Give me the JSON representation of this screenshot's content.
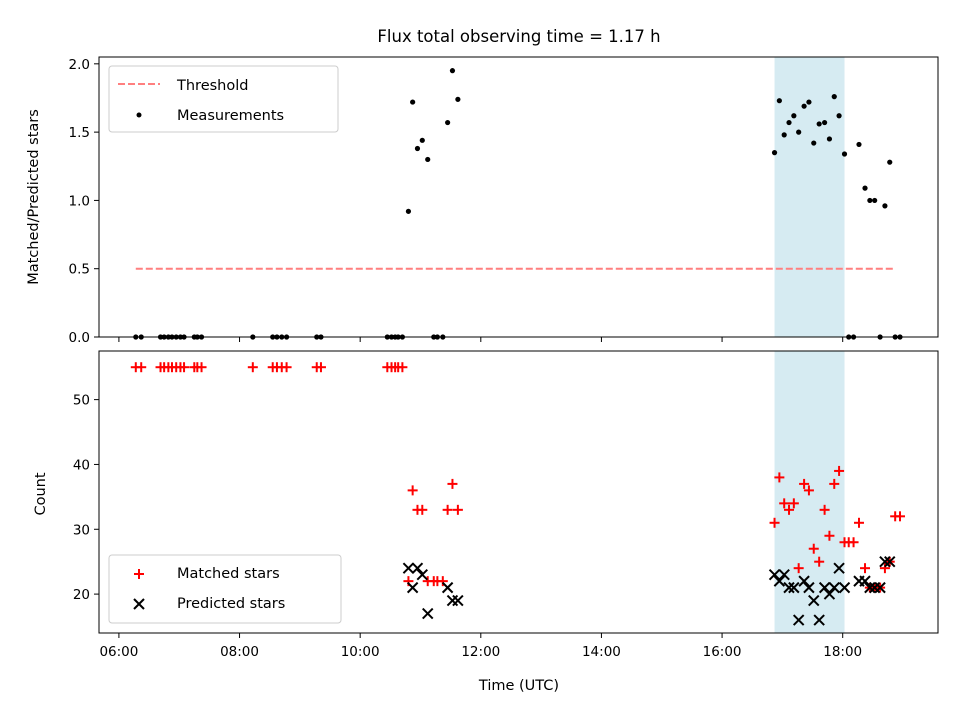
{
  "title": "Flux total observing time = 1.17 h",
  "colors": {
    "threshold": "#ff7f7f",
    "measurement": "#000000",
    "matched": "#ff0000",
    "predicted": "#000000",
    "span_fill": "#add8e6"
  },
  "chart_data": [
    {
      "type": "scatter",
      "ylabel": "Matched/Predicted stars",
      "xlim": [
        5.67,
        19.58
      ],
      "ylim": [
        0,
        2.05
      ],
      "yticks": [
        "0.0",
        "0.5",
        "1.0",
        "1.5",
        "2.0"
      ],
      "ytick_values": [
        0,
        0.5,
        1.0,
        1.5,
        2.0
      ],
      "xtick_values": [
        6,
        8,
        10,
        12,
        14,
        16,
        18
      ],
      "shaded_span": [
        16.87,
        18.03
      ],
      "legend": {
        "placement": "upper-left",
        "entries": [
          "Threshold",
          "Measurements"
        ]
      },
      "series": [
        {
          "name": "Threshold",
          "kind": "dashed-line",
          "x": [
            6.28,
            18.87
          ],
          "y": [
            0.5,
            0.5
          ]
        },
        {
          "name": "Measurements",
          "kind": "dot",
          "x": [
            6.28,
            6.37,
            6.69,
            6.75,
            6.82,
            6.88,
            6.95,
            7.02,
            7.08,
            7.25,
            7.3,
            7.37,
            8.22,
            8.55,
            8.62,
            8.7,
            8.78,
            9.28,
            9.35,
            10.45,
            10.52,
            10.58,
            10.63,
            10.7,
            10.8,
            10.87,
            10.95,
            11.03,
            11.12,
            11.22,
            11.28,
            11.37,
            11.45,
            11.53,
            11.62,
            16.87,
            16.95,
            17.03,
            17.11,
            17.19,
            17.27,
            17.36,
            17.44,
            17.52,
            17.61,
            17.7,
            17.78,
            17.86,
            17.94,
            18.03,
            18.1,
            18.18,
            18.27,
            18.37,
            18.45,
            18.53,
            18.62,
            18.7,
            18.78,
            18.87,
            18.95
          ],
          "y": [
            0,
            0,
            0,
            0,
            0,
            0,
            0,
            0,
            0,
            0,
            0,
            0,
            0,
            0,
            0,
            0,
            0,
            0,
            0,
            0,
            0,
            0,
            0,
            0,
            0.92,
            1.72,
            1.38,
            1.44,
            1.3,
            0,
            0,
            0,
            1.57,
            1.95,
            1.74,
            1.35,
            1.73,
            1.48,
            1.57,
            1.62,
            1.5,
            1.69,
            1.72,
            1.42,
            1.56,
            1.57,
            1.45,
            1.76,
            1.62,
            1.34,
            0,
            0,
            1.41,
            1.09,
            1.0,
            1.0,
            0,
            0.96,
            1.28,
            0,
            0
          ]
        }
      ]
    },
    {
      "type": "scatter",
      "xlabel": "Time (UTC)",
      "ylabel": "Count",
      "xlim": [
        5.67,
        19.58
      ],
      "ylim": [
        14,
        57.5
      ],
      "yticks": [
        "20",
        "30",
        "40",
        "50"
      ],
      "ytick_values": [
        20,
        30,
        40,
        50
      ],
      "xticks": [
        "06:00",
        "08:00",
        "10:00",
        "12:00",
        "14:00",
        "16:00",
        "18:00"
      ],
      "xtick_values": [
        6,
        8,
        10,
        12,
        14,
        16,
        18
      ],
      "shaded_span": [
        16.87,
        18.03
      ],
      "legend": {
        "placement": "lower-left",
        "entries": [
          "Matched stars",
          "Predicted stars"
        ]
      },
      "series": [
        {
          "name": "Matched stars",
          "kind": "plus",
          "x": [
            6.28,
            6.37,
            6.69,
            6.75,
            6.82,
            6.88,
            6.95,
            7.02,
            7.08,
            7.25,
            7.3,
            7.37,
            8.22,
            8.55,
            8.62,
            8.7,
            8.78,
            9.28,
            9.35,
            10.45,
            10.52,
            10.58,
            10.63,
            10.7,
            10.8,
            10.87,
            10.95,
            11.03,
            11.12,
            11.22,
            11.28,
            11.37,
            11.45,
            11.53,
            11.62,
            16.87,
            16.95,
            17.03,
            17.11,
            17.19,
            17.27,
            17.36,
            17.44,
            17.52,
            17.61,
            17.7,
            17.78,
            17.86,
            17.94,
            18.03,
            18.1,
            18.18,
            18.27,
            18.37,
            18.45,
            18.53,
            18.62,
            18.7,
            18.78,
            18.87,
            18.95
          ],
          "y": [
            55,
            55,
            55,
            55,
            55,
            55,
            55,
            55,
            55,
            55,
            55,
            55,
            55,
            55,
            55,
            55,
            55,
            55,
            55,
            55,
            55,
            55,
            55,
            55,
            22,
            36,
            33,
            33,
            22,
            22,
            22,
            22,
            33,
            37,
            33,
            31,
            38,
            34,
            33,
            34,
            24,
            37,
            36,
            27,
            25,
            33,
            29,
            37,
            39,
            28,
            28,
            28,
            31,
            24,
            21,
            21,
            21,
            24,
            25,
            32,
            32
          ]
        },
        {
          "name": "Predicted stars",
          "kind": "cross",
          "x": [
            10.8,
            10.87,
            10.95,
            11.03,
            11.12,
            11.45,
            11.53,
            11.62,
            16.87,
            16.95,
            17.03,
            17.11,
            17.19,
            17.27,
            17.36,
            17.44,
            17.52,
            17.61,
            17.7,
            17.78,
            17.86,
            17.94,
            18.03,
            18.27,
            18.37,
            18.45,
            18.53,
            18.62,
            18.7,
            18.78
          ],
          "y": [
            24,
            21,
            24,
            23,
            17,
            21,
            19,
            19,
            23,
            22,
            23,
            21,
            21,
            16,
            22,
            21,
            19,
            16,
            21,
            20,
            21,
            24,
            21,
            22,
            22,
            21,
            21,
            21,
            25,
            25
          ]
        }
      ]
    }
  ]
}
